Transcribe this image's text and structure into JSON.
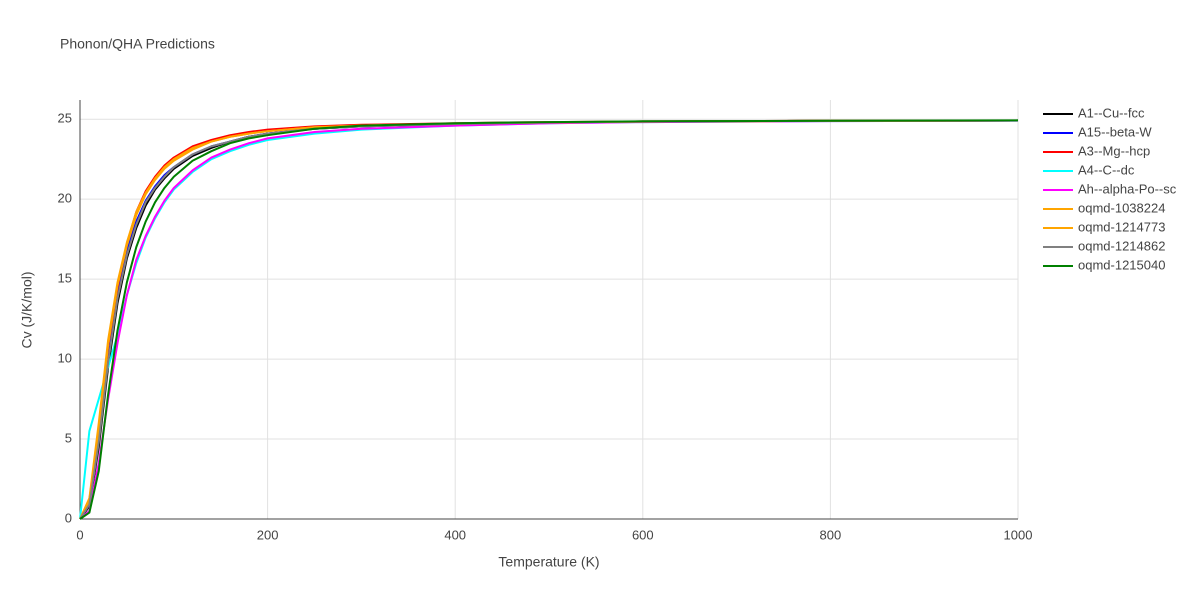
{
  "chart_data": {
    "type": "line",
    "title": "Phonon/QHA Predictions",
    "x_label": "Temperature (K)",
    "y_label": "Cv (J/K/mol)",
    "xlim": [
      0,
      1000
    ],
    "ylim": [
      0,
      26.2
    ],
    "xticks": [
      0,
      200,
      400,
      600,
      800,
      1000
    ],
    "yticks": [
      0,
      5,
      10,
      15,
      20,
      25
    ],
    "grid": true,
    "legend": "right",
    "x": [
      0,
      10,
      20,
      30,
      40,
      50,
      60,
      70,
      80,
      90,
      100,
      120,
      140,
      160,
      180,
      200,
      250,
      300,
      400,
      500,
      600,
      800,
      1000
    ],
    "series": [
      {
        "name": "A1--Cu--fcc",
        "color": "#000000",
        "values": [
          0,
          0.8,
          4.5,
          9.5,
          13.5,
          16.3,
          18.2,
          19.6,
          20.6,
          21.3,
          21.9,
          22.7,
          23.2,
          23.6,
          23.9,
          24.1,
          24.4,
          24.55,
          24.7,
          24.8,
          24.85,
          24.9,
          24.92
        ]
      },
      {
        "name": "A15--beta-W",
        "color": "#0000ff",
        "values": [
          0,
          1.0,
          5.0,
          10.0,
          14.0,
          16.8,
          18.6,
          19.9,
          20.8,
          21.5,
          22.0,
          22.8,
          23.3,
          23.6,
          23.9,
          24.1,
          24.4,
          24.55,
          24.7,
          24.8,
          24.85,
          24.9,
          24.92
        ]
      },
      {
        "name": "A3--Mg--hcp",
        "color": "#ff0000",
        "values": [
          0,
          1.2,
          5.5,
          10.8,
          14.5,
          17.2,
          19.2,
          20.5,
          21.4,
          22.1,
          22.6,
          23.3,
          23.7,
          24.0,
          24.2,
          24.35,
          24.55,
          24.65,
          24.75,
          24.82,
          24.86,
          24.9,
          24.92
        ]
      },
      {
        "name": "A4--C--dc",
        "color": "#00ffff",
        "values": [
          0,
          5.5,
          7.5,
          9.5,
          11.5,
          14.0,
          16.0,
          17.6,
          18.8,
          19.8,
          20.6,
          21.7,
          22.5,
          23.0,
          23.4,
          23.7,
          24.1,
          24.35,
          24.6,
          24.75,
          24.82,
          24.88,
          24.91
        ]
      },
      {
        "name": "Ah--alpha-Po--sc",
        "color": "#ff00ff",
        "values": [
          0,
          0.5,
          3.5,
          7.5,
          11.0,
          14.0,
          16.2,
          17.7,
          18.9,
          19.9,
          20.7,
          21.8,
          22.6,
          23.1,
          23.5,
          23.8,
          24.2,
          24.4,
          24.6,
          24.75,
          24.82,
          24.88,
          24.91
        ]
      },
      {
        "name": "oqmd-1038224",
        "color": "#ffa500",
        "values": [
          0,
          1.3,
          6.0,
          11.2,
          14.8,
          17.3,
          19.2,
          20.4,
          21.3,
          22.0,
          22.5,
          23.2,
          23.6,
          23.9,
          24.1,
          24.25,
          24.5,
          24.6,
          24.72,
          24.8,
          24.85,
          24.9,
          24.92
        ]
      },
      {
        "name": "oqmd-1214773",
        "color": "#ffa500",
        "values": [
          0,
          1.1,
          5.6,
          10.9,
          14.6,
          17.1,
          19.0,
          20.3,
          21.2,
          21.9,
          22.4,
          23.1,
          23.6,
          23.9,
          24.1,
          24.25,
          24.5,
          24.6,
          24.72,
          24.8,
          24.85,
          24.9,
          24.92
        ]
      },
      {
        "name": "oqmd-1214862",
        "color": "#808080",
        "values": [
          0,
          0.9,
          4.8,
          9.8,
          13.8,
          16.5,
          18.4,
          19.8,
          20.7,
          21.4,
          22.0,
          22.8,
          23.3,
          23.6,
          23.9,
          24.1,
          24.4,
          24.55,
          24.7,
          24.8,
          24.85,
          24.9,
          24.92
        ]
      },
      {
        "name": "oqmd-1215040",
        "color": "#008000",
        "values": [
          0,
          0.4,
          3.0,
          7.8,
          11.8,
          14.8,
          17.0,
          18.6,
          19.8,
          20.7,
          21.4,
          22.4,
          23.0,
          23.5,
          23.8,
          24.0,
          24.4,
          24.6,
          24.75,
          24.82,
          24.87,
          24.9,
          24.93
        ]
      }
    ]
  }
}
